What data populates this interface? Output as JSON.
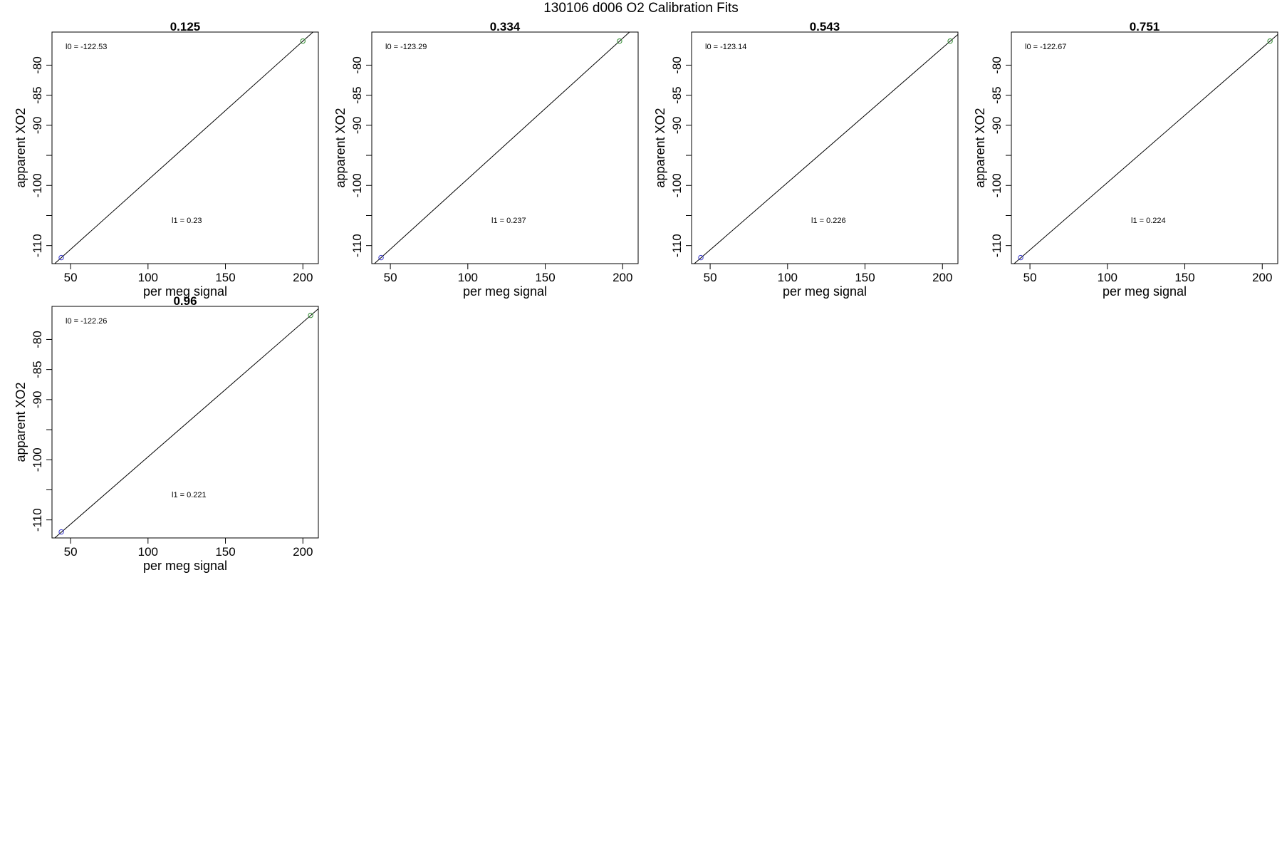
{
  "figure": {
    "title": "130106   d006   O2 Calibration Fits"
  },
  "colors": {
    "frame": "#000000",
    "fit_line": "#000000",
    "low_point": "#3333cc",
    "high_point": "#2e8b2e"
  },
  "chart_data": [
    {
      "type": "scatter",
      "title": "0.125",
      "xlabel": "per meg signal",
      "ylabel": "apparent XO2",
      "xlim": [
        38,
        210
      ],
      "ylim": [
        -113,
        -74.5
      ],
      "xticks": [
        50,
        100,
        150,
        200
      ],
      "yticks": [
        -80,
        -85,
        -90,
        -95,
        -100,
        -105,
        -110
      ],
      "ytick_labels": [
        "-80",
        "-85",
        "-90",
        "",
        "-100",
        "",
        "-110"
      ],
      "points": [
        {
          "x": 44,
          "y": -112
        },
        {
          "x": 200,
          "y": -76
        }
      ],
      "fit_line": {
        "x": [
          38,
          210
        ],
        "y": [
          -113.4,
          -73.7
        ]
      },
      "annotations": {
        "l0": "l0 =  -122.53",
        "l1": "l1 =  0.23"
      }
    },
    {
      "type": "scatter",
      "title": "0.334",
      "xlabel": "per meg signal",
      "ylabel": "apparent XO2",
      "xlim": [
        38,
        210
      ],
      "ylim": [
        -113,
        -74.5
      ],
      "xticks": [
        50,
        100,
        150,
        200
      ],
      "yticks": [
        -80,
        -85,
        -90,
        -95,
        -100,
        -105,
        -110
      ],
      "ytick_labels": [
        "-80",
        "-85",
        "-90",
        "",
        "-100",
        "",
        "-110"
      ],
      "points": [
        {
          "x": 44,
          "y": -112
        },
        {
          "x": 198,
          "y": -76
        }
      ],
      "fit_line": {
        "x": [
          38,
          210
        ],
        "y": [
          -113.4,
          -73.2
        ]
      },
      "annotations": {
        "l0": "l0 =  -123.29",
        "l1": "l1 =  0.237"
      }
    },
    {
      "type": "scatter",
      "title": "0.543",
      "xlabel": "per meg signal",
      "ylabel": "apparent XO2",
      "xlim": [
        38,
        210
      ],
      "ylim": [
        -113,
        -74.5
      ],
      "xticks": [
        50,
        100,
        150,
        200
      ],
      "yticks": [
        -80,
        -85,
        -90,
        -95,
        -100,
        -105,
        -110
      ],
      "ytick_labels": [
        "-80",
        "-85",
        "-90",
        "",
        "-100",
        "",
        "-110"
      ],
      "points": [
        {
          "x": 44,
          "y": -112
        },
        {
          "x": 205,
          "y": -76
        }
      ],
      "fit_line": {
        "x": [
          38,
          210
        ],
        "y": [
          -113.4,
          -74.9
        ]
      },
      "annotations": {
        "l0": "l0 =  -123.14",
        "l1": "l1 =  0.226"
      }
    },
    {
      "type": "scatter",
      "title": "0.751",
      "xlabel": "per meg signal",
      "ylabel": "apparent XO2",
      "xlim": [
        38,
        210
      ],
      "ylim": [
        -113,
        -74.5
      ],
      "xticks": [
        50,
        100,
        150,
        200
      ],
      "yticks": [
        -80,
        -85,
        -90,
        -95,
        -100,
        -105,
        -110
      ],
      "ytick_labels": [
        "-80",
        "-85",
        "-90",
        "",
        "-100",
        "",
        "-110"
      ],
      "points": [
        {
          "x": 44,
          "y": -112
        },
        {
          "x": 205,
          "y": -76
        }
      ],
      "fit_line": {
        "x": [
          38,
          210
        ],
        "y": [
          -113.4,
          -74.9
        ]
      },
      "annotations": {
        "l0": "l0 =  -122.67",
        "l1": "l1 =  0.224"
      }
    },
    {
      "type": "scatter",
      "title": "0.96",
      "xlabel": "per meg signal",
      "ylabel": "apparent XO2",
      "xlim": [
        38,
        210
      ],
      "ylim": [
        -113,
        -74.5
      ],
      "xticks": [
        50,
        100,
        150,
        200
      ],
      "yticks": [
        -80,
        -85,
        -90,
        -95,
        -100,
        -105,
        -110
      ],
      "ytick_labels": [
        "-80",
        "-85",
        "-90",
        "",
        "-100",
        "",
        "-110"
      ],
      "points": [
        {
          "x": 44,
          "y": -112
        },
        {
          "x": 205,
          "y": -76
        }
      ],
      "fit_line": {
        "x": [
          38,
          210
        ],
        "y": [
          -113.4,
          -74.9
        ]
      },
      "annotations": {
        "l0": "l0 =  -122.26",
        "l1": "l1 =  0.221"
      }
    }
  ]
}
